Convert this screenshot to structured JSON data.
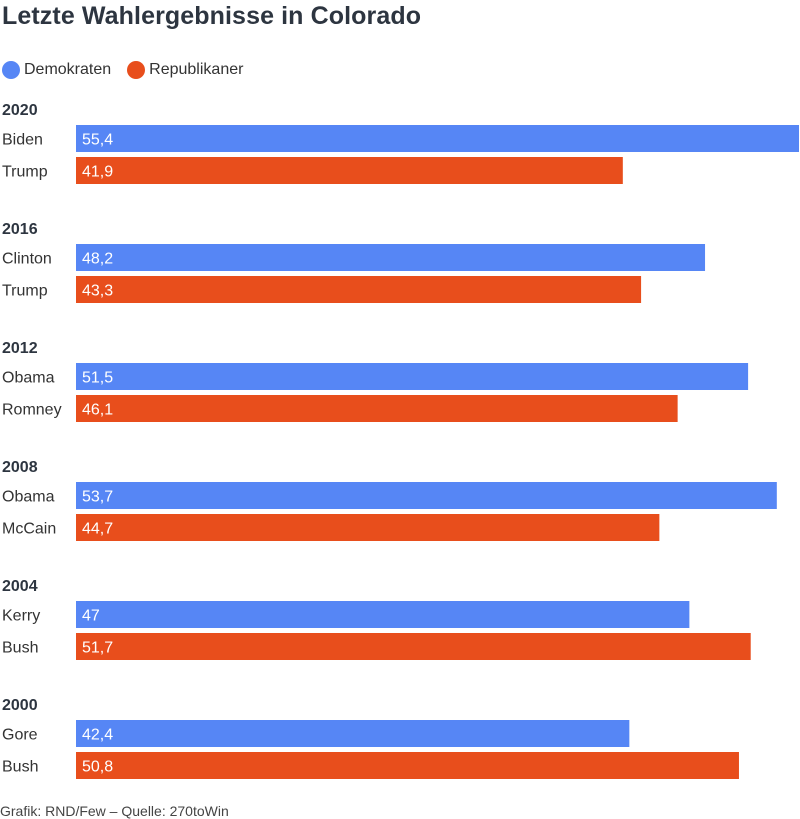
{
  "title": "Letzte Wahlergebnisse in Colorado",
  "legend": [
    {
      "label": "Demokraten",
      "color": "#5686f5"
    },
    {
      "label": "Republikaner",
      "color": "#e84e1c"
    }
  ],
  "source": "Grafik: RND/Few – Quelle: 270toWin",
  "chart_data": {
    "type": "bar",
    "orientation": "horizontal",
    "groups": [
      {
        "year": "2020",
        "bars": [
          {
            "candidate": "Biden",
            "party": "Demokraten",
            "value": 55.4,
            "label": "55,4"
          },
          {
            "candidate": "Trump",
            "party": "Republikaner",
            "value": 41.9,
            "label": "41,9"
          }
        ]
      },
      {
        "year": "2016",
        "bars": [
          {
            "candidate": "Clinton",
            "party": "Demokraten",
            "value": 48.2,
            "label": "48,2"
          },
          {
            "candidate": "Trump",
            "party": "Republikaner",
            "value": 43.3,
            "label": "43,3"
          }
        ]
      },
      {
        "year": "2012",
        "bars": [
          {
            "candidate": "Obama",
            "party": "Demokraten",
            "value": 51.5,
            "label": "51,5"
          },
          {
            "candidate": "Romney",
            "party": "Republikaner",
            "value": 46.1,
            "label": "46,1"
          }
        ]
      },
      {
        "year": "2008",
        "bars": [
          {
            "candidate": "Obama",
            "party": "Demokraten",
            "value": 53.7,
            "label": "53,7"
          },
          {
            "candidate": "McCain",
            "party": "Republikaner",
            "value": 44.7,
            "label": "44,7"
          }
        ]
      },
      {
        "year": "2004",
        "bars": [
          {
            "candidate": "Kerry",
            "party": "Demokraten",
            "value": 47,
            "label": "47"
          },
          {
            "candidate": "Bush",
            "party": "Republikaner",
            "value": 51.7,
            "label": "51,7"
          }
        ]
      },
      {
        "year": "2000",
        "bars": [
          {
            "candidate": "Gore",
            "party": "Demokraten",
            "value": 42.4,
            "label": "42,4"
          },
          {
            "candidate": "Bush",
            "party": "Republikaner",
            "value": 50.8,
            "label": "50,8"
          }
        ]
      }
    ],
    "xlim": [
      0,
      55.4
    ],
    "grid": false,
    "legend_position": "top-left"
  }
}
